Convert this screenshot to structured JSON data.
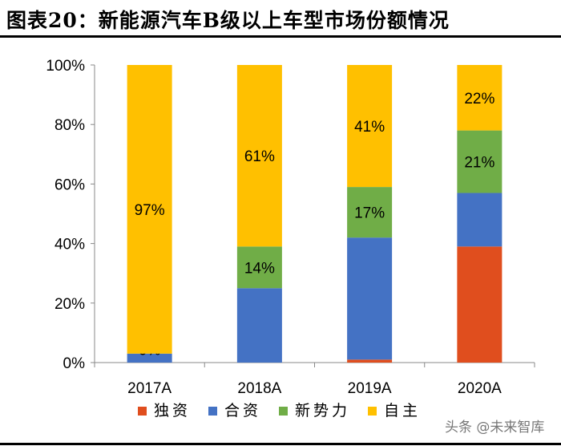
{
  "title": "图表20：新能源汽车B级以上车型市场份额情况",
  "watermark": "头条 @未来智库",
  "chart_data": {
    "type": "bar",
    "stacked": true,
    "categories": [
      "2017A",
      "2018A",
      "2019A",
      "2020A"
    ],
    "series": [
      {
        "name": "独资",
        "color": "#E04E1E",
        "values": [
          0,
          0,
          1,
          39
        ],
        "labels": [
          null,
          null,
          null,
          null
        ]
      },
      {
        "name": "合资",
        "color": "#4472C4",
        "values": [
          3,
          25,
          41,
          18
        ],
        "labels": [
          null,
          null,
          null,
          null
        ]
      },
      {
        "name": "新势力",
        "color": "#70AD47",
        "values": [
          0,
          14,
          17,
          21
        ],
        "labels": [
          "0%",
          "14%",
          "17%",
          "21%"
        ]
      },
      {
        "name": "自主",
        "color": "#FFC000",
        "values": [
          97,
          61,
          41,
          22
        ],
        "labels": [
          "97%",
          "61%",
          "41%",
          "22%"
        ]
      }
    ],
    "ylim": [
      0,
      100
    ],
    "yticks": [
      "0%",
      "20%",
      "40%",
      "60%",
      "80%",
      "100%"
    ],
    "grid": false,
    "legend": "bottom"
  }
}
